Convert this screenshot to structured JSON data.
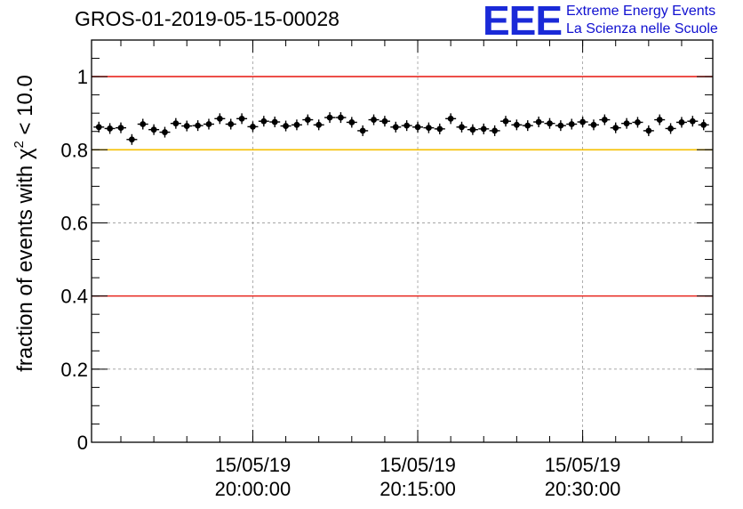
{
  "logo": {
    "mark": "EEE",
    "line1": "Extreme Energy Events",
    "line2": "La Scienza nelle Scuole",
    "color": "#1a2ad8"
  },
  "chart_data": {
    "type": "scatter",
    "title": "GROS-01-2019-05-15-00028",
    "ylabel_prefix": "fraction of events with ",
    "ylabel_symbol": "χ",
    "ylabel_exp": "2",
    "ylabel_suffix": " < 10.0",
    "xlabel": "",
    "ylim": [
      0,
      1.1
    ],
    "y_ticks": [
      "0",
      "0.2",
      "0.4",
      "0.6",
      "0.8",
      "1"
    ],
    "x_ticks": [
      {
        "date": "15/05/19",
        "time": "20:00:00"
      },
      {
        "date": "15/05/19",
        "time": "20:15:00"
      },
      {
        "date": "15/05/19",
        "time": "20:30:00"
      }
    ],
    "xlim": [
      "15/05/19 19:45:20",
      "15/05/19 20:41:50"
    ],
    "grid": true,
    "reference_lines": [
      {
        "y": 1.0,
        "color": "#e8261f"
      },
      {
        "y": 0.8,
        "color": "#f5c000"
      },
      {
        "y": 0.4,
        "color": "#e8261f"
      }
    ],
    "series": [
      {
        "marker": "filled-circle",
        "color": "#000000",
        "x": [
          "19:46:00",
          "19:47:00",
          "19:48:00",
          "19:49:00",
          "19:50:00",
          "19:51:00",
          "19:52:00",
          "19:53:00",
          "19:54:00",
          "19:55:00",
          "19:56:00",
          "19:57:00",
          "19:58:00",
          "19:59:00",
          "20:00:00",
          "20:01:00",
          "20:02:00",
          "20:03:00",
          "20:04:00",
          "20:05:00",
          "20:06:00",
          "20:07:00",
          "20:08:00",
          "20:09:00",
          "20:10:00",
          "20:11:00",
          "20:12:00",
          "20:13:00",
          "20:14:00",
          "20:15:00",
          "20:16:00",
          "20:17:00",
          "20:18:00",
          "20:19:00",
          "20:20:00",
          "20:21:00",
          "20:22:00",
          "20:23:00",
          "20:24:00",
          "20:25:00",
          "20:26:00",
          "20:27:00",
          "20:28:00",
          "20:29:00",
          "20:30:00",
          "20:31:00",
          "20:32:00",
          "20:33:00",
          "20:34:00",
          "20:35:00",
          "20:36:00",
          "20:37:00",
          "20:38:00",
          "20:39:00",
          "20:40:00",
          "20:41:00"
        ],
        "y": [
          0.862,
          0.858,
          0.86,
          0.828,
          0.87,
          0.855,
          0.848,
          0.872,
          0.865,
          0.866,
          0.87,
          0.885,
          0.87,
          0.885,
          0.863,
          0.878,
          0.876,
          0.865,
          0.868,
          0.882,
          0.868,
          0.888,
          0.888,
          0.875,
          0.852,
          0.882,
          0.878,
          0.862,
          0.866,
          0.862,
          0.86,
          0.857,
          0.885,
          0.862,
          0.855,
          0.857,
          0.852,
          0.878,
          0.868,
          0.866,
          0.876,
          0.872,
          0.866,
          0.87,
          0.876,
          0.868,
          0.882,
          0.86,
          0.872,
          0.875,
          0.852,
          0.882,
          0.858,
          0.875,
          0.878,
          0.868
        ]
      }
    ]
  }
}
